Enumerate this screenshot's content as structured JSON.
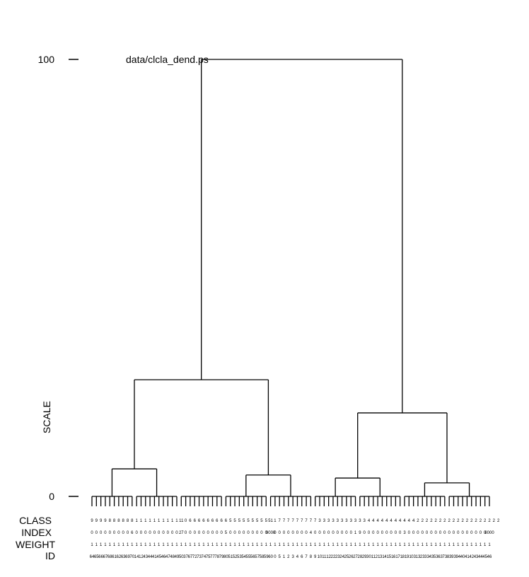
{
  "title": "data/clcla_dend.ps",
  "scale": {
    "label": "SCALE",
    "top_tick": "100",
    "bottom_tick": "0",
    "min": 0,
    "max": 100
  },
  "row_headers": {
    "class": "CLASS",
    "index": "INDEX",
    "weight": "WEIGHT",
    "id": "ID"
  },
  "leaf_count": 90,
  "leaf_groups": [
    {
      "size": 10,
      "merge_height": 0
    },
    {
      "size": 10,
      "merge_height": 0
    },
    {
      "size": 10,
      "merge_height": 0
    },
    {
      "size": 10,
      "merge_height": 0
    },
    {
      "size": 10,
      "merge_height": 0
    },
    {
      "size": 10,
      "merge_height": 0
    },
    {
      "size": 10,
      "merge_height": 0
    },
    {
      "size": 10,
      "merge_height": 0
    },
    {
      "size": 10,
      "merge_height": 0
    }
  ],
  "merges": [
    {
      "left": "g1",
      "right": "g2",
      "height": 6.3
    },
    {
      "left": "g4",
      "right": "g5",
      "height": 4.9
    },
    {
      "left": "m1",
      "right": "m2",
      "height": 26.7
    },
    {
      "left": "g6",
      "right": "g7",
      "height": 4.2
    },
    {
      "left": "g8",
      "right": "g9",
      "height": 3.1
    },
    {
      "left": "m4",
      "right": "m5",
      "height": 19.1
    },
    {
      "left": "m3",
      "right": "m6",
      "height": 100
    }
  ],
  "class_row": [
    "9",
    "9",
    "9",
    "9",
    "8",
    "8",
    "8",
    "8",
    "8",
    "8",
    "1",
    "1",
    "1",
    "1",
    "1",
    "1",
    "1",
    "1",
    "1",
    "1",
    "11",
    "0",
    "6",
    "6",
    "6",
    "6",
    "6",
    "6",
    "6",
    "6",
    "6",
    "5",
    "5",
    "5",
    "5",
    "5",
    "5",
    "5",
    "5",
    "5",
    "51",
    "1",
    "7",
    "7",
    "7",
    "7",
    "7",
    "7",
    "7",
    "7",
    "7",
    "3",
    "3",
    "3",
    "3",
    "3",
    "3",
    "3",
    "3",
    "3",
    "3",
    "3",
    "4",
    "4",
    "4",
    "4",
    "4",
    "4",
    "4",
    "4",
    "4",
    "4",
    "4",
    "2",
    "2",
    "2",
    "2",
    "2",
    "2",
    "2",
    "2",
    "2",
    "2",
    "2",
    "2",
    "2",
    "2",
    "2",
    "2",
    "2",
    "2",
    "2"
  ],
  "index_row": [
    "0",
    "0",
    "0",
    "0",
    "0",
    "0",
    "0",
    "0",
    "0",
    "6",
    "0",
    "0",
    "0",
    "0",
    "0",
    "0",
    "0",
    "0",
    "0",
    "0",
    "27",
    "0",
    "0",
    "0",
    "0",
    "0",
    "0",
    "0",
    "0",
    "0",
    "5",
    "0",
    "0",
    "0",
    "0",
    "0",
    "0",
    "0",
    "0",
    "0",
    "9000",
    "0",
    "0",
    "0",
    "0",
    "0",
    "0",
    "0",
    "0",
    "4",
    "0",
    "0",
    "0",
    "0",
    "0",
    "0",
    "0",
    "0",
    "0",
    "1",
    "9",
    "0",
    "0",
    "0",
    "0",
    "0",
    "0",
    "0",
    "0",
    "0",
    "3",
    "0",
    "0",
    "0",
    "0",
    "0",
    "0",
    "0",
    "0",
    "0",
    "0",
    "0",
    "0",
    "0",
    "0",
    "0",
    "0",
    "0",
    "0",
    "8000"
  ],
  "weight_row": [
    "1",
    "1",
    "1",
    "1",
    "1",
    "1",
    "1",
    "1",
    "1",
    "1",
    "1",
    "1",
    "1",
    "1",
    "1",
    "1",
    "1",
    "1",
    "1",
    "1",
    "1",
    "1",
    "1",
    "1",
    "1",
    "1",
    "1",
    "1",
    "1",
    "1",
    "1",
    "1",
    "1",
    "1",
    "1",
    "1",
    "1",
    "1",
    "1",
    "1",
    "1",
    "1",
    "1",
    "1",
    "1",
    "1",
    "1",
    "1",
    "1",
    "1",
    "1",
    "1",
    "1",
    "1",
    "1",
    "1",
    "1",
    "1",
    "1",
    "1",
    "1",
    "1",
    "1",
    "1",
    "1",
    "1",
    "1",
    "1",
    "1",
    "1",
    "1",
    "1",
    "1",
    "1",
    "1",
    "1",
    "1",
    "1",
    "1",
    "1",
    "1",
    "1",
    "1",
    "1",
    "1",
    "1",
    "1",
    "1",
    "1",
    "1"
  ],
  "id_row": [
    "64",
    "65",
    "66",
    "67",
    "68",
    "61",
    "62",
    "63",
    "69",
    "70",
    "14",
    "12",
    "43",
    "44",
    "41",
    "45",
    "46",
    "47",
    "48",
    "49",
    "50",
    "37",
    "67",
    "72",
    "73",
    "74",
    "75",
    "77",
    "78",
    "79",
    "80",
    "51",
    "52",
    "53",
    "54",
    "55",
    "56",
    "57",
    "58",
    "59",
    "60",
    "0",
    "5",
    "1",
    "2",
    "3",
    "4",
    "6",
    "7",
    "8",
    "9",
    "10",
    "11",
    "12",
    "22",
    "23",
    "24",
    "25",
    "26",
    "27",
    "28",
    "29",
    "30",
    "11",
    "21",
    "31",
    "41",
    "51",
    "61",
    "71",
    "81",
    "91",
    "03",
    "13",
    "23",
    "33",
    "43",
    "53",
    "63",
    "73",
    "83",
    "93",
    "94",
    "40",
    "41",
    "42",
    "43",
    "44",
    "45",
    "46"
  ]
}
